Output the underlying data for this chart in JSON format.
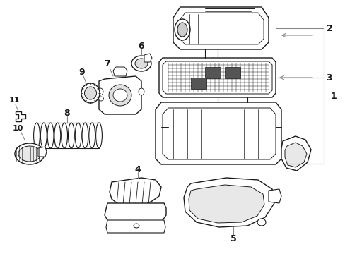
{
  "background_color": "#ffffff",
  "line_color": "#1a1a1a",
  "callout_color": "#888888",
  "fig_width": 4.89,
  "fig_height": 3.6,
  "dpi": 100
}
